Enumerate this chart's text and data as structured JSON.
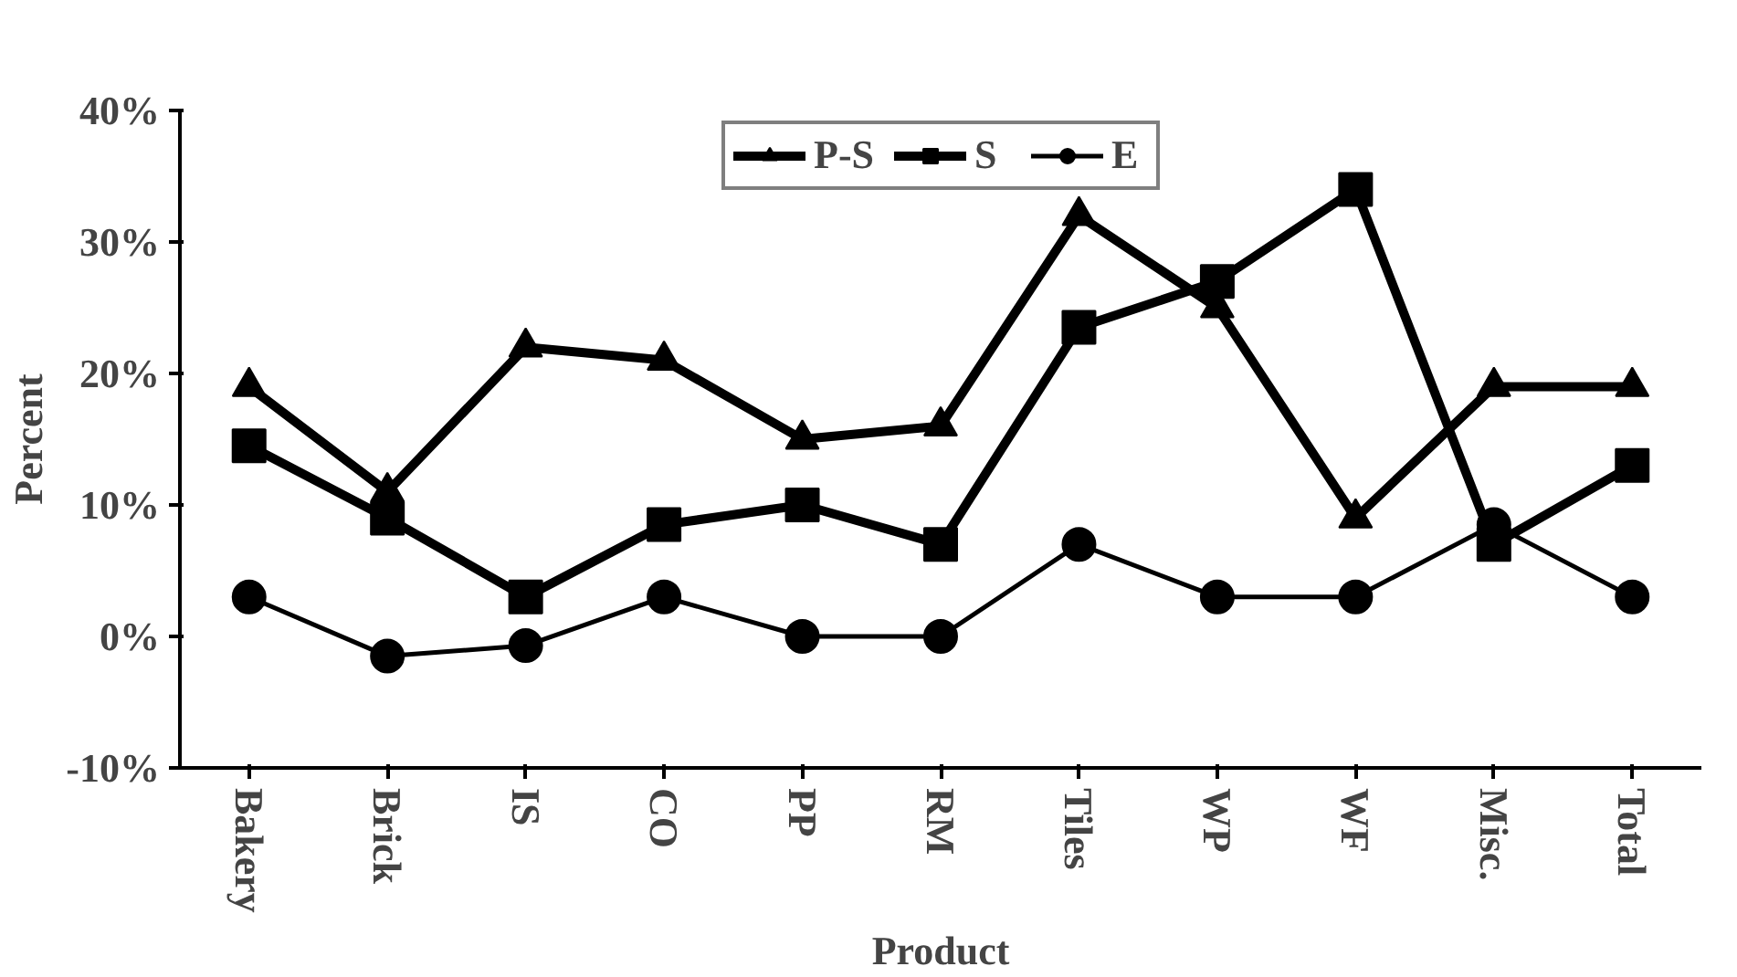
{
  "chart_data": {
    "type": "line",
    "xlabel": "Product",
    "ylabel": "Percent",
    "categories": [
      "Bakery",
      "Brick",
      "IS",
      "CO",
      "PP",
      "RM",
      "Tiles",
      "WP",
      "WF",
      "Misc.",
      "Total"
    ],
    "series": [
      {
        "name": "P-S",
        "color": "#000000",
        "marker": "triangle",
        "values": [
          19,
          11,
          22,
          21,
          15,
          16,
          32,
          25,
          9,
          19,
          19
        ]
      },
      {
        "name": "S",
        "color": "#000000",
        "marker": "square",
        "values": [
          14.5,
          9,
          3,
          8.5,
          10,
          7,
          23.5,
          27,
          34,
          7,
          13
        ]
      },
      {
        "name": "E",
        "color": "#000000",
        "marker": "circle",
        "values": [
          3,
          -1.5,
          -0.7,
          3,
          0,
          0,
          7,
          3,
          3,
          8.5,
          3
        ]
      }
    ],
    "ylim": [
      -10,
      40
    ],
    "yticks": [
      {
        "value": -10,
        "label": "-10%"
      },
      {
        "value": 0,
        "label": "0%"
      },
      {
        "value": 10,
        "label": "10%"
      },
      {
        "value": 20,
        "label": "20%"
      },
      {
        "value": 30,
        "label": "30%"
      },
      {
        "value": 40,
        "label": "40%"
      }
    ],
    "grid": false,
    "legend": "top",
    "line_style": "solid"
  }
}
